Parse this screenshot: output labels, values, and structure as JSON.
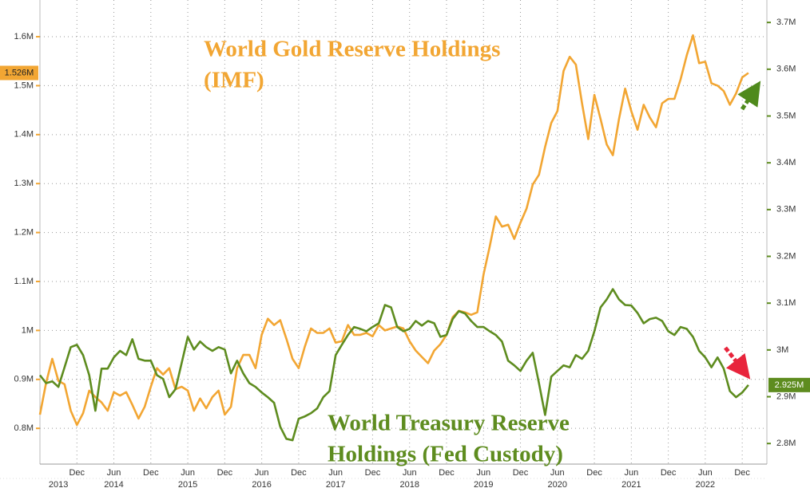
{
  "chart_data": {
    "type": "line",
    "x": [
      "2013-06",
      "2013-07",
      "2013-08",
      "2013-09",
      "2013-10",
      "2013-11",
      "2013-12",
      "2014-01",
      "2014-02",
      "2014-03",
      "2014-04",
      "2014-05",
      "2014-06",
      "2014-07",
      "2014-08",
      "2014-09",
      "2014-10",
      "2014-11",
      "2014-12",
      "2015-01",
      "2015-02",
      "2015-03",
      "2015-04",
      "2015-05",
      "2015-06",
      "2015-07",
      "2015-08",
      "2015-09",
      "2015-10",
      "2015-11",
      "2015-12",
      "2016-01",
      "2016-02",
      "2016-03",
      "2016-04",
      "2016-05",
      "2016-06",
      "2016-07",
      "2016-08",
      "2016-09",
      "2016-10",
      "2016-11",
      "2016-12",
      "2017-01",
      "2017-02",
      "2017-03",
      "2017-04",
      "2017-05",
      "2017-06",
      "2017-07",
      "2017-08",
      "2017-09",
      "2017-10",
      "2017-11",
      "2017-12",
      "2018-01",
      "2018-02",
      "2018-03",
      "2018-04",
      "2018-05",
      "2018-06",
      "2018-07",
      "2018-08",
      "2018-09",
      "2018-10",
      "2018-11",
      "2018-12",
      "2019-01",
      "2019-02",
      "2019-03",
      "2019-04",
      "2019-05",
      "2019-06",
      "2019-07",
      "2019-08",
      "2019-09",
      "2019-10",
      "2019-11",
      "2019-12",
      "2020-01",
      "2020-02",
      "2020-03",
      "2020-04",
      "2020-05",
      "2020-06",
      "2020-07",
      "2020-08",
      "2020-09",
      "2020-10",
      "2020-11",
      "2020-12",
      "2021-01",
      "2021-02",
      "2021-03",
      "2021-04",
      "2021-05",
      "2021-06",
      "2021-07",
      "2021-08",
      "2021-09",
      "2021-10",
      "2021-11",
      "2021-12",
      "2022-01",
      "2022-02",
      "2022-03",
      "2022-04",
      "2022-05",
      "2022-06",
      "2022-07",
      "2022-08",
      "2022-09",
      "2022-10",
      "2022-11",
      "2022-12",
      "2023-01"
    ],
    "xlim": [
      "2013-06",
      "2023-04"
    ],
    "xticks": [
      {
        "value": "2013-12",
        "label": "Dec"
      },
      {
        "value": "2014-06",
        "label": "Jun"
      },
      {
        "value": "2014-12",
        "label": "Dec"
      },
      {
        "value": "2015-06",
        "label": "Jun"
      },
      {
        "value": "2015-12",
        "label": "Dec"
      },
      {
        "value": "2016-06",
        "label": "Jun"
      },
      {
        "value": "2016-12",
        "label": "Dec"
      },
      {
        "value": "2017-06",
        "label": "Jun"
      },
      {
        "value": "2017-12",
        "label": "Dec"
      },
      {
        "value": "2018-06",
        "label": "Jun"
      },
      {
        "value": "2018-12",
        "label": "Dec"
      },
      {
        "value": "2019-06",
        "label": "Jun"
      },
      {
        "value": "2019-12",
        "label": "Dec"
      },
      {
        "value": "2020-06",
        "label": "Jun"
      },
      {
        "value": "2020-12",
        "label": "Dec"
      },
      {
        "value": "2021-06",
        "label": "Jun"
      },
      {
        "value": "2021-12",
        "label": "Dec"
      },
      {
        "value": "2022-06",
        "label": "Jun"
      },
      {
        "value": "2022-12",
        "label": "Dec"
      }
    ],
    "year_ticks": [
      {
        "value": "2013-09",
        "label": "2013"
      },
      {
        "value": "2014-06",
        "label": "2014"
      },
      {
        "value": "2015-06",
        "label": "2015"
      },
      {
        "value": "2016-06",
        "label": "2016"
      },
      {
        "value": "2017-06",
        "label": "2017"
      },
      {
        "value": "2018-06",
        "label": "2018"
      },
      {
        "value": "2019-06",
        "label": "2019"
      },
      {
        "value": "2020-06",
        "label": "2020"
      },
      {
        "value": "2021-06",
        "label": "2021"
      },
      {
        "value": "2022-06",
        "label": "2022"
      }
    ],
    "ylim": [
      0.727,
      1.675
    ],
    "yticks": [
      {
        "value": 0.8,
        "label": "0.8M"
      },
      {
        "value": 0.9,
        "label": "0.9M"
      },
      {
        "value": 1,
        "label": "1M"
      },
      {
        "value": 1.1,
        "label": "1.1M"
      },
      {
        "value": 1.2,
        "label": "1.2M"
      },
      {
        "value": 1.3,
        "label": "1.3M"
      },
      {
        "value": 1.4,
        "label": "1.4M"
      },
      {
        "value": 1.5,
        "label": "1.5M"
      },
      {
        "value": 1.6,
        "label": "1.6M"
      }
    ],
    "y2lim": [
      2.756,
      3.748
    ],
    "y2ticks": [
      {
        "value": 2.8,
        "label": "2.8M"
      },
      {
        "value": 2.9,
        "label": "2.9M"
      },
      {
        "value": 3,
        "label": "3M"
      },
      {
        "value": 3.1,
        "label": "3.1M"
      },
      {
        "value": 3.2,
        "label": "3.2M"
      },
      {
        "value": 3.3,
        "label": "3.3M"
      },
      {
        "value": 3.4,
        "label": "3.4M"
      },
      {
        "value": 3.5,
        "label": "3.5M"
      },
      {
        "value": 3.6,
        "label": "3.6M"
      },
      {
        "value": 3.7,
        "label": "3.7M"
      }
    ],
    "grid": true,
    "series": [
      {
        "name_lines": [
          "World Gold Reserve Holdings",
          "(IMF)"
        ],
        "color": "#f2a633",
        "axis": "y",
        "last_value": {
          "value": 1.526,
          "label": "1.526M"
        },
        "values": [
          0.828,
          0.893,
          0.942,
          0.897,
          0.89,
          0.836,
          0.807,
          0.831,
          0.877,
          0.864,
          0.853,
          0.836,
          0.874,
          0.867,
          0.874,
          0.848,
          0.82,
          0.844,
          0.885,
          0.923,
          0.91,
          0.923,
          0.88,
          0.885,
          0.877,
          0.836,
          0.861,
          0.841,
          0.864,
          0.877,
          0.828,
          0.844,
          0.923,
          0.95,
          0.95,
          0.923,
          0.991,
          1.024,
          1.011,
          1.021,
          0.983,
          0.942,
          0.923,
          0.967,
          1.004,
          0.995,
          0.995,
          1.004,
          0.975,
          0.978,
          1.011,
          0.991,
          0.991,
          0.995,
          0.988,
          1.011,
          1.0,
          1.004,
          1.008,
          1.004,
          0.978,
          0.959,
          0.946,
          0.933,
          0.959,
          0.972,
          0.991,
          1.027,
          1.04,
          1.037,
          1.032,
          1.037,
          1.114,
          1.171,
          1.233,
          1.212,
          1.216,
          1.187,
          1.22,
          1.249,
          1.298,
          1.318,
          1.375,
          1.424,
          1.448,
          1.53,
          1.559,
          1.543,
          1.464,
          1.391,
          1.481,
          1.432,
          1.38,
          1.358,
          1.432,
          1.494,
          1.448,
          1.41,
          1.461,
          1.435,
          1.415,
          1.464,
          1.473,
          1.473,
          1.513,
          1.562,
          1.603,
          1.546,
          1.549,
          1.505,
          1.5,
          1.489,
          1.461,
          1.484,
          1.517,
          1.526
        ]
      },
      {
        "name_lines": [
          "World Treasury Reserve",
          "Holdings (Fed Custody)"
        ],
        "color": "#5e8c1f",
        "axis": "y2",
        "last_value": {
          "value": 2.925,
          "label": "2.925M"
        },
        "values": [
          2.946,
          2.929,
          2.933,
          2.921,
          2.963,
          3.006,
          3.011,
          2.989,
          2.946,
          2.87,
          2.96,
          2.96,
          2.984,
          2.998,
          2.989,
          3.023,
          2.981,
          2.977,
          2.977,
          2.946,
          2.938,
          2.899,
          2.916,
          2.972,
          3.028,
          3.001,
          3.018,
          3.006,
          2.998,
          3.006,
          3.001,
          2.95,
          2.977,
          2.95,
          2.929,
          2.921,
          2.909,
          2.899,
          2.887,
          2.836,
          2.81,
          2.807,
          2.853,
          2.858,
          2.865,
          2.875,
          2.899,
          2.912,
          2.989,
          3.011,
          3.032,
          3.049,
          3.045,
          3.04,
          3.049,
          3.057,
          3.096,
          3.091,
          3.049,
          3.04,
          3.045,
          3.062,
          3.052,
          3.062,
          3.057,
          3.028,
          3.032,
          3.066,
          3.083,
          3.078,
          3.062,
          3.049,
          3.049,
          3.04,
          3.032,
          3.018,
          2.977,
          2.967,
          2.955,
          2.977,
          2.994,
          2.929,
          2.861,
          2.943,
          2.955,
          2.967,
          2.963,
          2.989,
          2.981,
          2.998,
          3.04,
          3.091,
          3.108,
          3.13,
          3.108,
          3.096,
          3.095,
          3.079,
          3.057,
          3.066,
          3.069,
          3.062,
          3.04,
          3.032,
          3.049,
          3.045,
          3.028,
          2.998,
          2.984,
          2.963,
          2.984,
          2.96,
          2.912,
          2.899,
          2.909,
          2.925
        ]
      }
    ]
  }
}
